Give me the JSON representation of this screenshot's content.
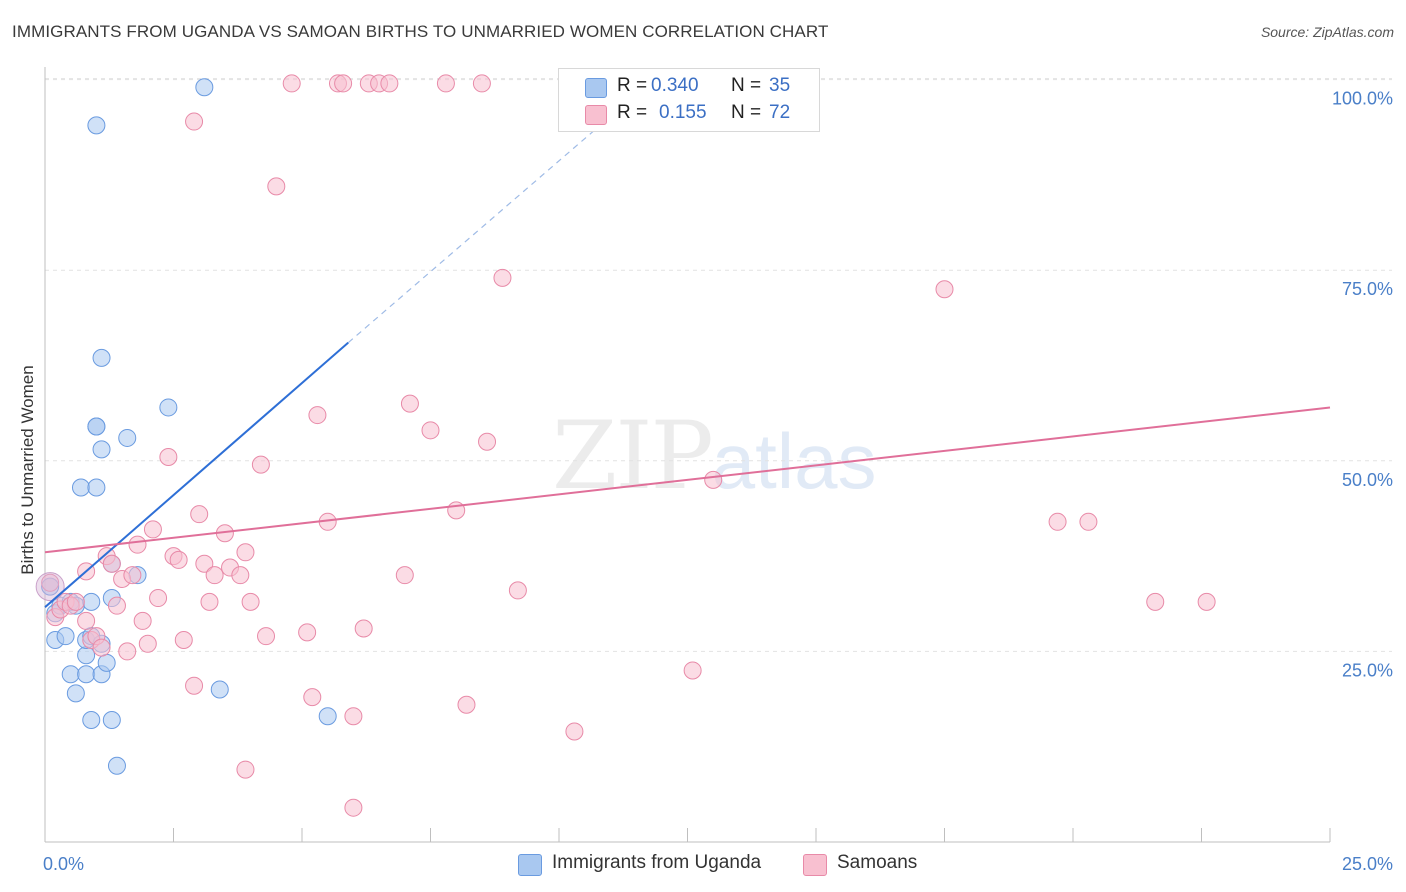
{
  "header": {
    "title": "IMMIGRANTS FROM UGANDA VS SAMOAN BIRTHS TO UNMARRIED WOMEN CORRELATION CHART",
    "source": "Source: ZipAtlas.com"
  },
  "watermark": {
    "zip": "ZIP",
    "atlas": "atlas"
  },
  "legend": {
    "rows": [
      {
        "r_label": "R =",
        "r_value": "0.340",
        "n_label": "N =",
        "n_value": "35",
        "color": "#a9c8f0",
        "border": "#6a9be0"
      },
      {
        "r_label": "R =",
        "r_value": "0.155",
        "n_label": "N =",
        "n_value": "72",
        "color": "#f8c0d0",
        "border": "#e88aa8"
      }
    ]
  },
  "bottom_legend": {
    "items": [
      {
        "label": "Immigrants from Uganda",
        "color": "#a9c8f0",
        "border": "#6a9be0"
      },
      {
        "label": "Samoans",
        "color": "#f8c0d0",
        "border": "#e88aa8"
      }
    ]
  },
  "chart_data": {
    "type": "scatter",
    "title": "IMMIGRANTS FROM UGANDA VS SAMOAN BIRTHS TO UNMARRIED WOMEN CORRELATION CHART",
    "xlabel": "",
    "ylabel": "Births to Unmarried Women",
    "xlim": [
      0,
      25
    ],
    "ylim": [
      0,
      101
    ],
    "x_tick_labels": [
      "0.0%",
      "25.0%"
    ],
    "y_ticks": [
      25,
      50,
      75,
      100
    ],
    "y_tick_labels": [
      "25.0%",
      "50.0%",
      "75.0%",
      "100.0%"
    ],
    "grid": true,
    "series": [
      {
        "name": "Immigrants from Uganda",
        "color": "#a9c8f0",
        "stroke": "#6a9be0",
        "R": 0.34,
        "N": 35,
        "points": [
          [
            0.1,
            33.5
          ],
          [
            0.2,
            30.0
          ],
          [
            0.2,
            26.5
          ],
          [
            0.3,
            31.0
          ],
          [
            0.4,
            27.0
          ],
          [
            0.5,
            31.5
          ],
          [
            0.5,
            22.0
          ],
          [
            0.6,
            19.5
          ],
          [
            0.6,
            31.0
          ],
          [
            0.7,
            46.5
          ],
          [
            0.8,
            22.0
          ],
          [
            0.8,
            24.5
          ],
          [
            0.8,
            26.5
          ],
          [
            0.9,
            16.0
          ],
          [
            0.9,
            27.0
          ],
          [
            0.9,
            31.5
          ],
          [
            1.0,
            54.5
          ],
          [
            1.0,
            46.5
          ],
          [
            1.0,
            94.0
          ],
          [
            1.0,
            54.5
          ],
          [
            1.1,
            26.0
          ],
          [
            1.1,
            63.5
          ],
          [
            1.1,
            22.0
          ],
          [
            1.1,
            51.5
          ],
          [
            1.2,
            23.5
          ],
          [
            1.3,
            16.0
          ],
          [
            1.3,
            36.5
          ],
          [
            1.3,
            32.0
          ],
          [
            1.4,
            10.0
          ],
          [
            1.6,
            53.0
          ],
          [
            1.8,
            35.0
          ],
          [
            2.4,
            57.0
          ],
          [
            3.1,
            99.0
          ],
          [
            3.4,
            20.0
          ],
          [
            5.5,
            16.5
          ]
        ],
        "trend": {
          "x0": 0,
          "y0": 30.8,
          "x1": 5.9,
          "y1": 65.5,
          "dashed_to_x": 10.8,
          "dashed_to_y": 94.0
        }
      },
      {
        "name": "Samoans",
        "color": "#f8c0d0",
        "stroke": "#e88aa8",
        "R": 0.155,
        "N": 72,
        "points": [
          [
            0.1,
            34.0
          ],
          [
            0.2,
            29.5
          ],
          [
            0.3,
            30.5
          ],
          [
            0.4,
            31.5
          ],
          [
            0.5,
            31.0
          ],
          [
            0.6,
            31.5
          ],
          [
            0.8,
            35.5
          ],
          [
            0.8,
            29.0
          ],
          [
            0.9,
            26.5
          ],
          [
            1.0,
            27.0
          ],
          [
            1.1,
            25.5
          ],
          [
            1.2,
            37.5
          ],
          [
            1.3,
            36.5
          ],
          [
            1.4,
            31.0
          ],
          [
            1.5,
            34.5
          ],
          [
            1.6,
            25.0
          ],
          [
            1.7,
            35.0
          ],
          [
            1.8,
            39.0
          ],
          [
            1.9,
            29.0
          ],
          [
            2.0,
            26.0
          ],
          [
            2.1,
            41.0
          ],
          [
            2.2,
            32.0
          ],
          [
            2.4,
            50.5
          ],
          [
            2.5,
            37.5
          ],
          [
            2.6,
            37.0
          ],
          [
            2.7,
            26.5
          ],
          [
            2.9,
            94.5
          ],
          [
            2.9,
            20.5
          ],
          [
            3.0,
            43.0
          ],
          [
            3.1,
            36.5
          ],
          [
            3.2,
            31.5
          ],
          [
            3.3,
            35.0
          ],
          [
            3.5,
            40.5
          ],
          [
            3.6,
            36.0
          ],
          [
            3.8,
            35.0
          ],
          [
            3.9,
            38.0
          ],
          [
            4.0,
            31.5
          ],
          [
            4.2,
            49.5
          ],
          [
            4.3,
            27.0
          ],
          [
            4.5,
            86.0
          ],
          [
            4.8,
            99.5
          ],
          [
            5.1,
            27.5
          ],
          [
            5.2,
            19.0
          ],
          [
            5.3,
            56.0
          ],
          [
            5.5,
            42.0
          ],
          [
            5.7,
            99.5
          ],
          [
            5.8,
            99.5
          ],
          [
            6.0,
            16.5
          ],
          [
            6.2,
            28.0
          ],
          [
            6.3,
            99.5
          ],
          [
            6.5,
            99.5
          ],
          [
            6.7,
            99.5
          ],
          [
            7.0,
            35.0
          ],
          [
            7.1,
            57.5
          ],
          [
            7.5,
            54.0
          ],
          [
            7.8,
            99.5
          ],
          [
            8.0,
            43.5
          ],
          [
            8.2,
            18.0
          ],
          [
            8.5,
            99.5
          ],
          [
            8.6,
            52.5
          ],
          [
            8.9,
            74.0
          ],
          [
            9.2,
            33.0
          ],
          [
            10.3,
            14.5
          ],
          [
            12.6,
            22.5
          ],
          [
            13.0,
            47.5
          ],
          [
            17.5,
            72.5
          ],
          [
            19.7,
            42.0
          ],
          [
            20.3,
            42.0
          ],
          [
            21.6,
            31.5
          ],
          [
            22.6,
            31.5
          ],
          [
            6.0,
            4.5
          ],
          [
            3.9,
            9.5
          ]
        ],
        "trend": {
          "x0": 0,
          "y0": 38.0,
          "x1": 25,
          "y1": 57.0
        }
      }
    ]
  }
}
